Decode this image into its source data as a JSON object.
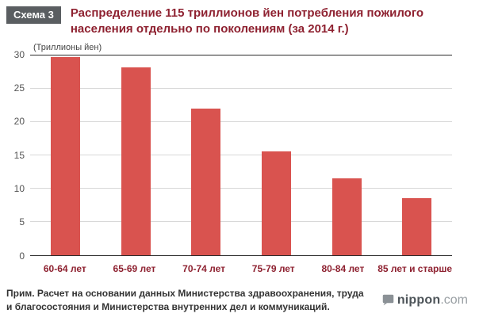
{
  "header": {
    "badge": "Схема 3",
    "title": "Распределение 115 триллионов йен потребления пожилого населения отдельно по поколениям (за 2014 г.)"
  },
  "chart_data": {
    "type": "bar",
    "title": "Распределение 115 триллионов йен потребления пожилого населения отдельно по поколениям (за 2014 г.)",
    "unit_label": "(Триллионы йен)",
    "categories": [
      "60-64 лет",
      "65-69 лет",
      "70-74 лет",
      "75-79 лет",
      "80-84 лет",
      "85 лет и старше"
    ],
    "values": [
      29.7,
      28.2,
      22.0,
      15.5,
      11.5,
      8.5
    ],
    "xlabel": "",
    "ylabel": "Триллионы йен",
    "ylim": [
      0,
      30
    ],
    "yticks": [
      0,
      5,
      10,
      15,
      20,
      25,
      30
    ],
    "grid": true,
    "legend": "none",
    "bar_color": "#d9534f"
  },
  "footer": {
    "note": "Прим. Расчет на основании данных Министерства здравоохранения, труда и благосостояния и Министерства внутренних дел и коммуникаций.",
    "logo_name": "nippon",
    "logo_tld": ".com"
  }
}
